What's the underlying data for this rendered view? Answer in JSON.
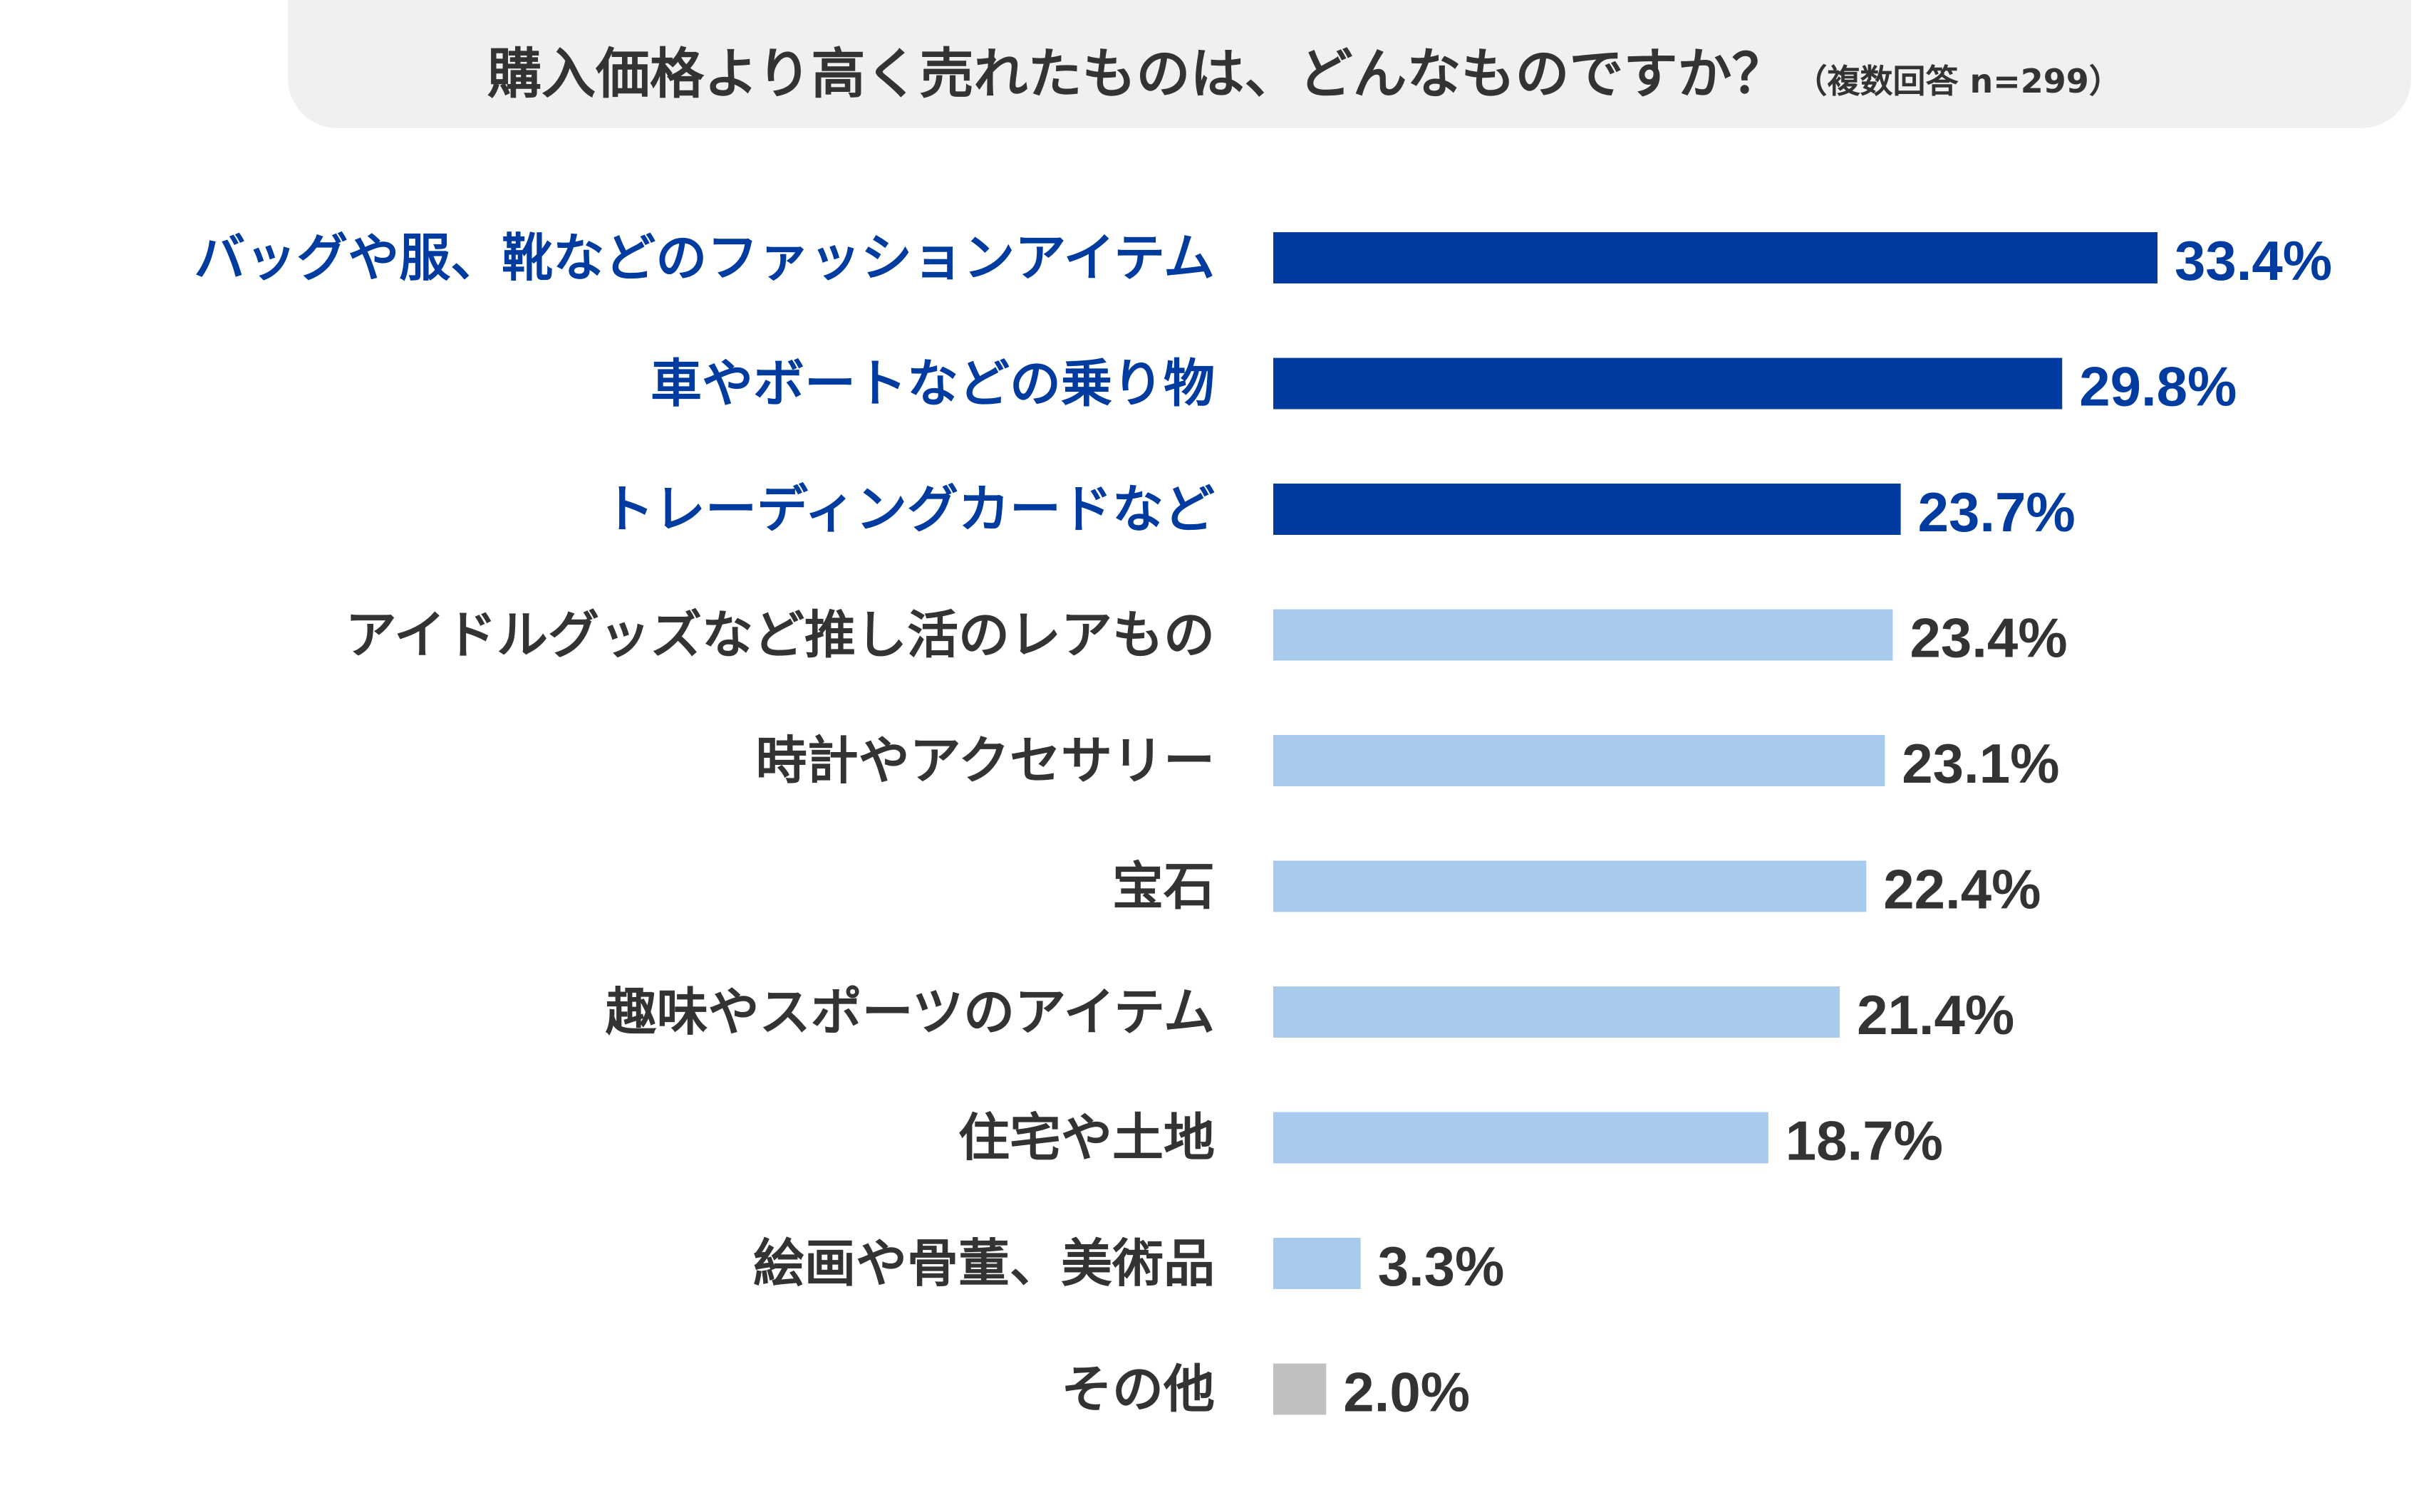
{
  "title": {
    "main": "購入価格より高く売れたものは、どんなものですか？",
    "sub": "（複数回答 n=299）"
  },
  "colors": {
    "highlight": "#003b9f",
    "normal": "#a8cbed",
    "other": "#c0c0c0",
    "label_default": "#333333",
    "title_bg": "#f0f0f0"
  },
  "chart_data": {
    "type": "bar",
    "orientation": "horizontal",
    "categories": [
      "バッグや服、靴などのファッションアイテム",
      "車やボートなどの乗り物",
      "トレーディングカードなど",
      "アイドルグッズなど推し活のレアもの",
      "時計やアクセサリー",
      "宝石",
      "趣味やスポーツのアイテム",
      "住宅や土地",
      "絵画や骨董、美術品",
      "その他"
    ],
    "values": [
      33.4,
      29.8,
      23.7,
      23.4,
      23.1,
      22.4,
      21.4,
      18.7,
      3.3,
      2.0
    ],
    "value_labels": [
      "33.4%",
      "29.8%",
      "23.7%",
      "23.4%",
      "23.1%",
      "22.4%",
      "21.4%",
      "18.7%",
      "3.3%",
      "2.0%"
    ],
    "highlighted": [
      true,
      true,
      true,
      false,
      false,
      false,
      false,
      false,
      false,
      false
    ],
    "other_index": 9,
    "unit": "%",
    "grid": false,
    "legend": "none"
  }
}
